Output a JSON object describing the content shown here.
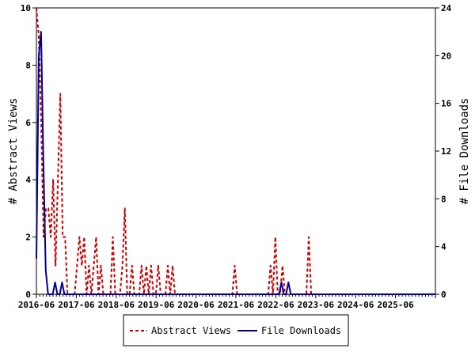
{
  "chart_data": {
    "type": "line",
    "x_tick_labels": [
      "2016-06",
      "2017-06",
      "2018-06",
      "2019-06",
      "2020-06",
      "2021-06",
      "2022-06",
      "2023-06",
      "2024-06",
      "2025-06"
    ],
    "y_left_label": "# Abstract Views",
    "y_right_label": "# File Downloads",
    "y_left_lim": [
      0,
      10
    ],
    "y_left_ticks": [
      0,
      2,
      4,
      6,
      8,
      10
    ],
    "y_right_lim": [
      0,
      24
    ],
    "y_right_ticks": [
      0,
      4,
      8,
      12,
      16,
      20,
      24
    ],
    "legend_position": "bottom-center",
    "grid": false,
    "series": [
      {
        "name": "Abstract Views",
        "axis": "left",
        "color": "#cc0000",
        "style": "dashed",
        "values": [
          10,
          9,
          6,
          2,
          3,
          3,
          2,
          4,
          1,
          4,
          7,
          2,
          2,
          0,
          0,
          0,
          0,
          1,
          2,
          1,
          2,
          0,
          1,
          0,
          1,
          2,
          0,
          1,
          0,
          0,
          0,
          0,
          2,
          0,
          0,
          0,
          1,
          3,
          0,
          0,
          1,
          0,
          0,
          0,
          1,
          0,
          1,
          0,
          1,
          0,
          0,
          1,
          0,
          0,
          0,
          1,
          0,
          1,
          0,
          0,
          0,
          0,
          0,
          0,
          0,
          0,
          0,
          0,
          0,
          0,
          0,
          0,
          0,
          0,
          0,
          0,
          0,
          0,
          0,
          0,
          0,
          0,
          0,
          1,
          0,
          0,
          0,
          0,
          0,
          0,
          0,
          0,
          0,
          0,
          0,
          0,
          0,
          0,
          1,
          0,
          2,
          0,
          0,
          1,
          0,
          0,
          0,
          0,
          0,
          0,
          0,
          0,
          0,
          0,
          2,
          0,
          0,
          0,
          0,
          0,
          0,
          0,
          0,
          0,
          0,
          0,
          0,
          0,
          0,
          0,
          0,
          0,
          0,
          0,
          0,
          0,
          0,
          0,
          0,
          0,
          0,
          0,
          0,
          0,
          0,
          0,
          0,
          0,
          0,
          0,
          0,
          0,
          0,
          0,
          0,
          0,
          0,
          0,
          0,
          0,
          0,
          0,
          0,
          0,
          0,
          0,
          0,
          0
        ]
      },
      {
        "name": "File Downloads",
        "axis": "right",
        "color": "#000099",
        "style": "solid",
        "values": [
          3,
          20,
          22,
          11,
          2,
          0,
          0,
          0,
          1,
          0,
          0,
          1,
          0,
          0,
          0,
          0,
          0,
          0,
          0,
          0,
          0,
          0,
          0,
          0,
          0,
          0,
          0,
          0,
          0,
          0,
          0,
          0,
          0,
          0,
          0,
          0,
          0,
          0,
          0,
          0,
          0,
          0,
          0,
          0,
          0,
          0,
          0,
          0,
          0,
          0,
          0,
          0,
          0,
          0,
          0,
          0,
          0,
          0,
          0,
          0,
          0,
          0,
          0,
          0,
          0,
          0,
          0,
          0,
          0,
          0,
          0,
          0,
          0,
          0,
          0,
          0,
          0,
          0,
          0,
          0,
          0,
          0,
          0,
          0,
          0,
          0,
          0,
          0,
          0,
          0,
          0,
          0,
          0,
          0,
          0,
          0,
          0,
          0,
          0,
          0,
          0,
          0,
          0,
          0,
          0,
          1,
          0,
          0,
          1,
          0,
          0,
          0,
          0,
          0,
          0,
          0,
          0,
          0,
          0,
          0,
          0,
          0,
          0,
          0,
          0,
          0,
          0,
          0,
          0,
          0,
          0,
          0,
          0,
          0,
          0,
          0,
          0,
          0,
          0,
          0,
          0,
          0,
          0,
          0,
          0,
          0,
          0,
          0,
          0,
          0,
          0,
          0,
          0,
          0,
          0,
          0,
          0,
          0,
          0,
          0,
          0,
          0,
          0,
          0,
          0,
          0,
          0,
          0,
          0,
          0,
          0,
          0
        ]
      }
    ]
  }
}
